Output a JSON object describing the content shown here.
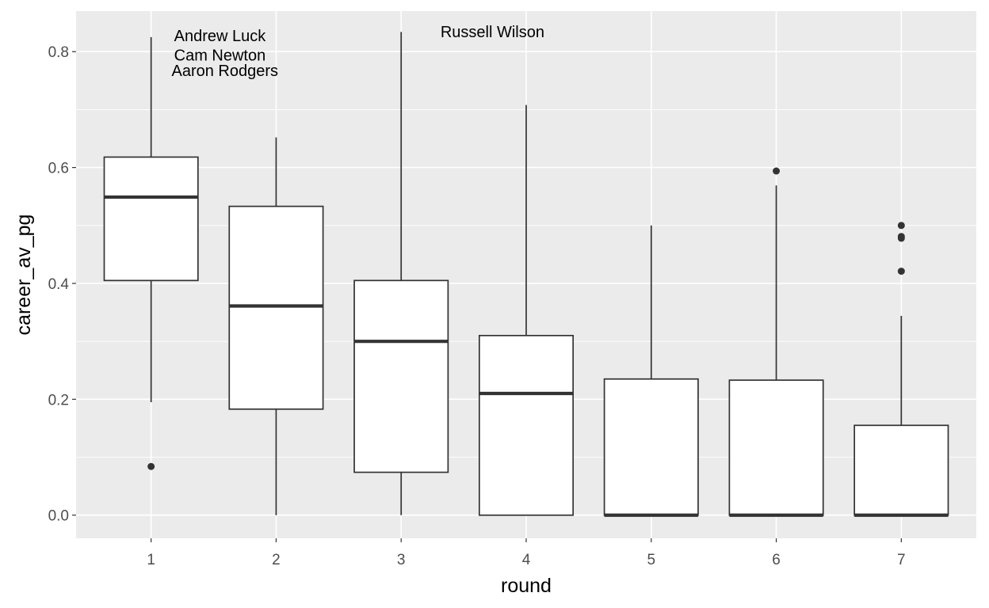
{
  "chart_data": {
    "type": "box",
    "xlabel": "round",
    "ylabel": "career_av_pg",
    "categories": [
      "1",
      "2",
      "3",
      "4",
      "5",
      "6",
      "7"
    ],
    "ylim": [
      -0.04,
      0.87
    ],
    "y_ticks": [
      0.0,
      0.2,
      0.4,
      0.6,
      0.8
    ],
    "y_tick_labels": [
      "0.0",
      "0.2",
      "0.4",
      "0.6",
      "0.8"
    ],
    "grid": true,
    "colors": {
      "panel": "#ebebeb",
      "grid": "#ffffff",
      "box_fill": "#ffffff",
      "box_stroke": "#333333"
    },
    "boxes": [
      {
        "category": "1",
        "whisker_low": 0.195,
        "q1": 0.405,
        "median": 0.549,
        "q3": 0.618,
        "whisker_high": 0.825,
        "outliers": [
          0.084
        ]
      },
      {
        "category": "2",
        "whisker_low": 0.0,
        "q1": 0.183,
        "median": 0.361,
        "q3": 0.533,
        "whisker_high": 0.652,
        "outliers": []
      },
      {
        "category": "3",
        "whisker_low": 0.0,
        "q1": 0.074,
        "median": 0.3,
        "q3": 0.405,
        "whisker_high": 0.834,
        "outliers": []
      },
      {
        "category": "4",
        "whisker_low": 0.0,
        "q1": 0.0,
        "median": 0.21,
        "q3": 0.31,
        "whisker_high": 0.708,
        "outliers": []
      },
      {
        "category": "5",
        "whisker_low": 0.0,
        "q1": 0.0,
        "median": 0.0,
        "q3": 0.235,
        "whisker_high": 0.5,
        "outliers": []
      },
      {
        "category": "6",
        "whisker_low": 0.0,
        "q1": 0.0,
        "median": 0.0,
        "q3": 0.233,
        "whisker_high": 0.569,
        "outliers": [
          0.594
        ]
      },
      {
        "category": "7",
        "whisker_low": 0.0,
        "q1": 0.0,
        "median": 0.0,
        "q3": 0.155,
        "whisker_high": 0.344,
        "outliers": [
          0.421,
          0.478,
          0.481,
          0.5
        ]
      }
    ],
    "annotations": [
      {
        "text": "Andrew Luck",
        "x": 1.55,
        "y": 0.825
      },
      {
        "text": "Cam Newton",
        "x": 1.55,
        "y": 0.792
      },
      {
        "text": "Aaron Rodgers",
        "x": 1.59,
        "y": 0.765
      },
      {
        "text": "Russell Wilson",
        "x": 3.73,
        "y": 0.832
      }
    ]
  }
}
